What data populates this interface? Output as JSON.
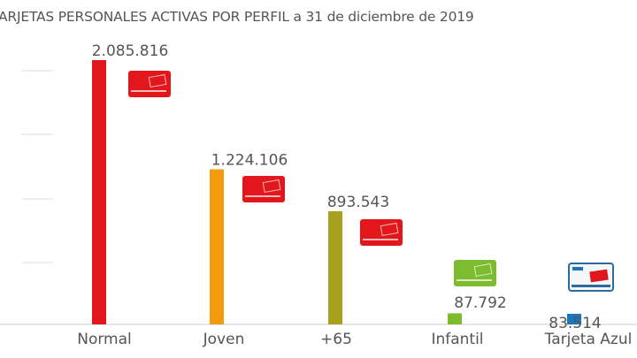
{
  "chart_data": {
    "type": "bar",
    "title": "ARJETAS PERSONALES ACTIVAS POR PERFIL a 31 de diciembre de 2019",
    "categories": [
      "Normal",
      "Joven",
      "+65",
      "Infantil",
      "Tarjeta Azul"
    ],
    "values": [
      2085816,
      1224106,
      893543,
      87792,
      83514
    ],
    "value_labels": [
      "2.085.816",
      "1.224.106",
      "893.543",
      "87.792",
      "83.514"
    ],
    "colors": [
      "#e3161b",
      "#f39a0e",
      "#a6a21e",
      "#7dbb2f",
      "#1b75bb"
    ],
    "card_icons": [
      "red-card-icon",
      "red-card-icon",
      "red-card-icon",
      "green-card-icon",
      "blue-card-icon"
    ],
    "xlabel": "",
    "ylabel": "",
    "ylim": [
      0,
      2085816
    ],
    "grid": true
  }
}
